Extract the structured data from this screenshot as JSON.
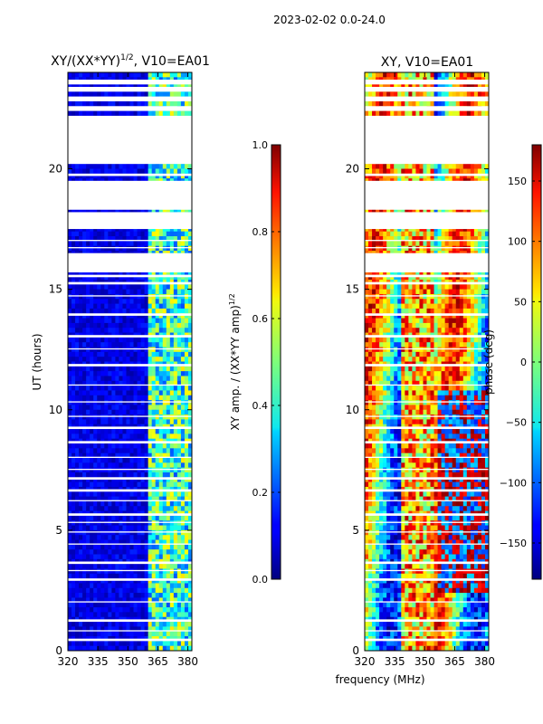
{
  "header": {
    "suptitle": "2023-02-02 0.0-24.0"
  },
  "chart_data": [
    {
      "type": "heatmap",
      "title_main": "XY/(XX*YY)",
      "title_sup": "1/2",
      "title_suffix": ", V10=EA01",
      "ylabel": "UT (hours)",
      "xlabel": "",
      "xlim": [
        320,
        382
      ],
      "ylim": [
        0,
        24
      ],
      "xticks": [
        "320",
        "335",
        "350",
        "365",
        "380"
      ],
      "xtick_values": [
        320,
        335,
        350,
        365,
        380
      ],
      "yticks": [
        "0",
        "5",
        "10",
        "15",
        "20"
      ],
      "ytick_values": [
        0,
        5,
        10,
        15,
        20
      ],
      "colorbar": {
        "label_main": "XY amp. / (XX*YY amp)",
        "label_sup": "1/2",
        "range": [
          0.0,
          1.0
        ],
        "ticks": [
          "0.0",
          "0.2",
          "0.4",
          "0.6",
          "0.8",
          "1.0"
        ],
        "tick_values": [
          0.0,
          0.2,
          0.4,
          0.6,
          0.8,
          1.0
        ]
      },
      "data_gaps_hours": [
        [
          0.4,
          0.5
        ],
        [
          0.8,
          0.85
        ],
        [
          1.2,
          1.3
        ],
        [
          2.0,
          2.05
        ],
        [
          2.9,
          3.0
        ],
        [
          3.3,
          3.35
        ],
        [
          3.6,
          3.7
        ],
        [
          4.4,
          4.45
        ],
        [
          4.9,
          4.95
        ],
        [
          5.3,
          5.35
        ],
        [
          5.6,
          5.7
        ],
        [
          6.2,
          6.25
        ],
        [
          6.6,
          6.7
        ],
        [
          7.1,
          7.2
        ],
        [
          7.5,
          7.55
        ],
        [
          8.0,
          8.05
        ],
        [
          8.6,
          8.7
        ],
        [
          9.2,
          9.3
        ],
        [
          9.7,
          9.75
        ],
        [
          10.3,
          10.35
        ],
        [
          11.0,
          11.05
        ],
        [
          11.8,
          11.9
        ],
        [
          12.5,
          12.55
        ],
        [
          13.0,
          13.1
        ],
        [
          13.9,
          14.0
        ],
        [
          14.7,
          14.75
        ],
        [
          15.2,
          15.3
        ],
        [
          15.5,
          15.6
        ],
        [
          15.7,
          16.5
        ],
        [
          16.7,
          16.75
        ],
        [
          17.0,
          17.05
        ],
        [
          17.5,
          18.2
        ],
        [
          18.3,
          19.5
        ],
        [
          19.7,
          19.8
        ],
        [
          20.2,
          22.2
        ],
        [
          22.4,
          22.6
        ],
        [
          22.8,
          23.0
        ],
        [
          23.2,
          23.4
        ],
        [
          23.5,
          23.7
        ]
      ]
    },
    {
      "type": "heatmap",
      "title_main": "XY, V10=EA01",
      "ylabel": "",
      "xlabel": "frequency (MHz)",
      "xlim": [
        320,
        382
      ],
      "ylim": [
        0,
        24
      ],
      "xticks": [
        "320",
        "335",
        "350",
        "365",
        "380"
      ],
      "xtick_values": [
        320,
        335,
        350,
        365,
        380
      ],
      "yticks": [
        "0",
        "5",
        "10",
        "15",
        "20"
      ],
      "ytick_values": [
        0,
        5,
        10,
        15,
        20
      ],
      "colorbar": {
        "label": "phase (deg)",
        "range": [
          -180,
          180
        ],
        "ticks": [
          "−150",
          "−100",
          "−50",
          "0",
          "50",
          "100",
          "150"
        ],
        "tick_values": [
          -150,
          -100,
          -50,
          0,
          50,
          100,
          150
        ]
      },
      "data_gaps_hours": [
        [
          0.4,
          0.5
        ],
        [
          0.8,
          0.85
        ],
        [
          1.2,
          1.3
        ],
        [
          2.0,
          2.05
        ],
        [
          2.9,
          3.0
        ],
        [
          3.3,
          3.35
        ],
        [
          3.6,
          3.7
        ],
        [
          4.4,
          4.45
        ],
        [
          4.9,
          4.95
        ],
        [
          5.3,
          5.35
        ],
        [
          5.6,
          5.7
        ],
        [
          6.2,
          6.25
        ],
        [
          6.6,
          6.7
        ],
        [
          7.1,
          7.2
        ],
        [
          7.5,
          7.55
        ],
        [
          8.0,
          8.05
        ],
        [
          8.6,
          8.7
        ],
        [
          9.2,
          9.3
        ],
        [
          9.7,
          9.75
        ],
        [
          10.3,
          10.35
        ],
        [
          11.0,
          11.05
        ],
        [
          11.8,
          11.9
        ],
        [
          12.5,
          12.55
        ],
        [
          13.0,
          13.1
        ],
        [
          13.9,
          14.0
        ],
        [
          14.7,
          14.75
        ],
        [
          15.2,
          15.3
        ],
        [
          15.5,
          15.6
        ],
        [
          15.7,
          16.5
        ],
        [
          16.7,
          16.75
        ],
        [
          17.0,
          17.05
        ],
        [
          17.5,
          18.2
        ],
        [
          18.3,
          19.5
        ],
        [
          19.7,
          19.8
        ],
        [
          20.2,
          22.2
        ],
        [
          22.4,
          22.6
        ],
        [
          22.8,
          23.0
        ],
        [
          23.2,
          23.4
        ],
        [
          23.5,
          23.7
        ]
      ]
    }
  ]
}
